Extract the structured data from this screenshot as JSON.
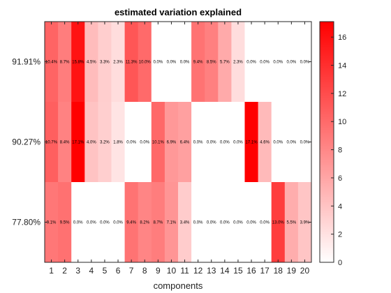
{
  "chart_data": {
    "type": "heatmap",
    "title": "estimated variation explained",
    "xlabel": "components",
    "ylabel": "",
    "x_categories": [
      "1",
      "2",
      "3",
      "4",
      "5",
      "6",
      "7",
      "8",
      "9",
      "10",
      "11",
      "12",
      "13",
      "14",
      "15",
      "16",
      "17",
      "18",
      "19",
      "20"
    ],
    "y_categories": [
      "91.91%",
      "90.27%",
      "77.80%"
    ],
    "values": [
      [
        10.4,
        8.7,
        15.8,
        4.5,
        3.3,
        2.3,
        11.3,
        10.0,
        0.0,
        0.0,
        0.0,
        9.4,
        8.5,
        5.7,
        2.3,
        0.0,
        0.0,
        0.0,
        0.0,
        0.0
      ],
      [
        10.7,
        8.4,
        17.1,
        4.0,
        3.2,
        1.8,
        0.0,
        0.0,
        10.1,
        6.9,
        6.4,
        0.0,
        0.0,
        0.0,
        0.0,
        17.1,
        4.6,
        0.0,
        0.0,
        0.0
      ],
      [
        9.1,
        9.5,
        0.0,
        0.0,
        0.0,
        0.0,
        9.4,
        8.2,
        8.7,
        7.1,
        3.4,
        0.0,
        0.0,
        0.0,
        0.0,
        0.0,
        0.0,
        13.0,
        5.5,
        3.9
      ]
    ],
    "cell_labels": [
      [
        "10.4%",
        "8.7%",
        "15.8%",
        "4.5%",
        "3.3%",
        "2.3%",
        "11.3%",
        "10.0%",
        "0.0%",
        "0.0%",
        "0.0%",
        "9.4%",
        "8.5%",
        "5.7%",
        "2.3%",
        "0.0%",
        "0.0%",
        "0.0%",
        "0.0%",
        "0.0%"
      ],
      [
        "10.7%",
        "8.4%",
        "17.1%",
        "4.0%",
        "3.2%",
        "1.8%",
        "0.0%",
        "0.0%",
        "10.1%",
        "6.9%",
        "6.4%",
        "0.0%",
        "0.0%",
        "0.0%",
        "0.0%",
        "17.1%",
        "4.6%",
        "0.0%",
        "0.0%",
        "0.0%"
      ],
      [
        "9.1%",
        "9.5%",
        "0.0%",
        "0.0%",
        "0.0%",
        "0.0%",
        "9.4%",
        "8.2%",
        "8.7%",
        "7.1%",
        "3.4%",
        "0.0%",
        "0.0%",
        "0.0%",
        "0.0%",
        "0.0%",
        "0.0%",
        "13.0%",
        "5.5%",
        "3.9%"
      ]
    ],
    "colorbar": {
      "range": [
        0,
        17.1
      ],
      "ticks": [
        "0",
        "2",
        "4",
        "6",
        "8",
        "10",
        "12",
        "14",
        "16"
      ],
      "low_color": "#ffffff",
      "high_color": "#ff0000"
    },
    "grid": false
  }
}
